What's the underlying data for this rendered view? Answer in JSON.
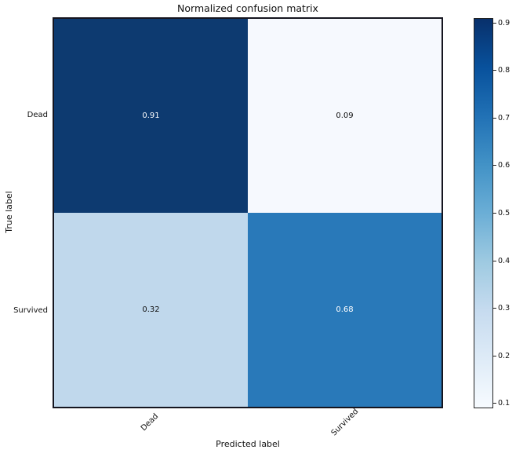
{
  "figure": {
    "background_color": "#ffffff"
  },
  "chart_data": {
    "type": "heatmap",
    "title": "Normalized confusion matrix",
    "xlabel": "Predicted label",
    "ylabel": "True label",
    "x_tick_labels": [
      "Dead",
      "Survived"
    ],
    "y_tick_labels": [
      "Dead",
      "Survived"
    ],
    "matrix": [
      [
        0.91,
        0.09
      ],
      [
        0.32,
        0.68
      ]
    ],
    "cell_labels": [
      [
        "0.91",
        "0.09"
      ],
      [
        "0.32",
        "0.68"
      ]
    ],
    "cell_colors": [
      [
        "#0d3a70",
        "#f6f9fe"
      ],
      [
        "#c0d8ec",
        "#2979b9"
      ]
    ],
    "cell_text_colors": [
      [
        "#ffffff",
        "#111111"
      ],
      [
        "#111111",
        "#ffffff"
      ]
    ],
    "colormap": "Blues",
    "value_range": [
      0.09,
      0.91
    ],
    "grid": false,
    "colorbar": {
      "position": "right",
      "tick_labels": [
        "0.9",
        "0.8",
        "0.7",
        "0.6",
        "0.5",
        "0.4",
        "0.3",
        "0.2",
        "0.1"
      ],
      "tick_values": [
        0.9,
        0.8,
        0.7,
        0.6,
        0.5,
        0.4,
        0.3,
        0.2,
        0.1
      ],
      "gradient_top_to_bottom": [
        "#08306b",
        "#08519c",
        "#2171b5",
        "#4292c6",
        "#6baed6",
        "#9ecae1",
        "#c6dbef",
        "#deebf7",
        "#f7fbff"
      ]
    }
  }
}
